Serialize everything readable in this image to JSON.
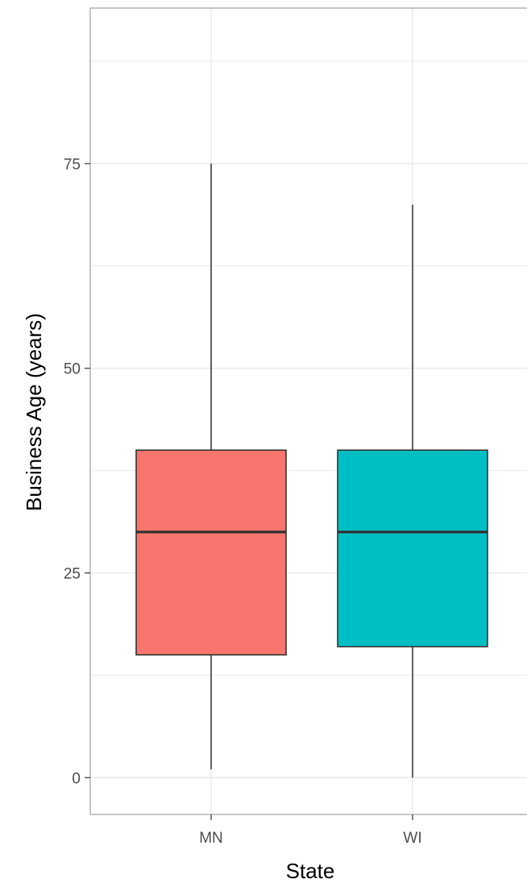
{
  "chart_data": {
    "type": "boxplot",
    "xlabel": "State",
    "ylabel": "Business Age (years)",
    "ylim": [
      -4.5,
      94
    ],
    "yticks": [
      0,
      25,
      50,
      75
    ],
    "grid": true,
    "categories": [
      "MN",
      "WI"
    ],
    "boxes": [
      {
        "category": "MN",
        "min": 1,
        "q1": 15,
        "median": 30,
        "q3": 40,
        "max": 75,
        "fill": "#F8766D"
      },
      {
        "category": "WI",
        "min": 0,
        "q1": 16,
        "median": 30,
        "q3": 40,
        "max": 70,
        "fill": "#00BFC4"
      }
    ]
  }
}
